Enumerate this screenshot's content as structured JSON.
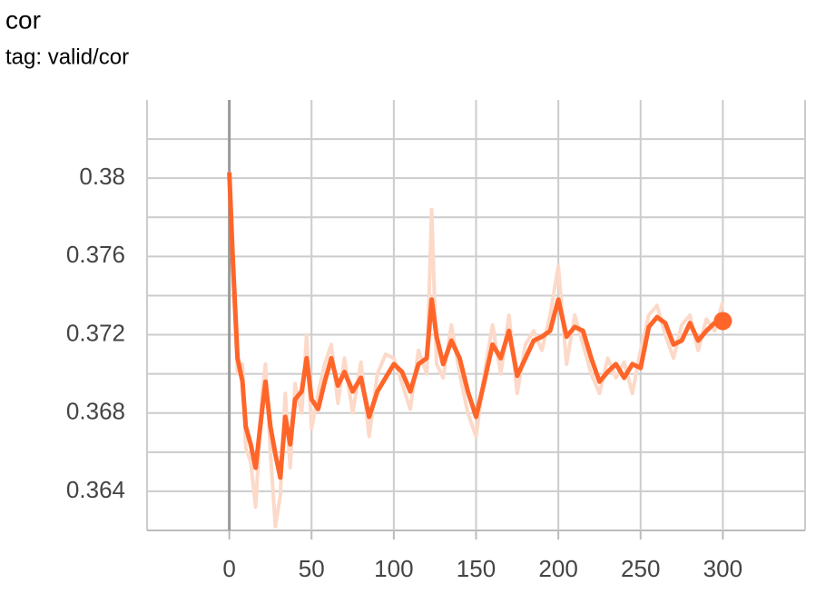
{
  "chart_data": {
    "type": "line",
    "title": "cor",
    "subtitle": "tag: valid/cor",
    "x": [
      0,
      2,
      5,
      8,
      10,
      13,
      16,
      20,
      22,
      25,
      28,
      31,
      34,
      37,
      40,
      44,
      47,
      50,
      54,
      58,
      62,
      66,
      70,
      75,
      80,
      85,
      90,
      95,
      100,
      105,
      110,
      115,
      120,
      123,
      126,
      130,
      135,
      140,
      145,
      150,
      155,
      160,
      165,
      170,
      175,
      180,
      185,
      190,
      195,
      200,
      205,
      210,
      215,
      220,
      225,
      230,
      235,
      240,
      245,
      250,
      255,
      260,
      265,
      270,
      275,
      280,
      285,
      290,
      295,
      300
    ],
    "series": [
      {
        "color": "#fcd9c8",
        "values": [
          0.3803,
          0.3755,
          0.37,
          0.3705,
          0.3662,
          0.3655,
          0.3632,
          0.369,
          0.3705,
          0.366,
          0.3622,
          0.3638,
          0.369,
          0.3652,
          0.3695,
          0.368,
          0.372,
          0.3672,
          0.369,
          0.3705,
          0.3715,
          0.3685,
          0.3708,
          0.368,
          0.3706,
          0.3668,
          0.37,
          0.371,
          0.3708,
          0.3695,
          0.3682,
          0.3712,
          0.37,
          0.3784,
          0.3705,
          0.3698,
          0.3725,
          0.37,
          0.368,
          0.3668,
          0.37,
          0.3725,
          0.37,
          0.373,
          0.369,
          0.3715,
          0.3722,
          0.3712,
          0.373,
          0.3755,
          0.3705,
          0.373,
          0.3715,
          0.37,
          0.369,
          0.3708,
          0.3698,
          0.3706,
          0.369,
          0.3712,
          0.373,
          0.3735,
          0.372,
          0.3708,
          0.3725,
          0.373,
          0.3712,
          0.3728,
          0.3722,
          0.3737
        ]
      },
      {
        "color": "#ff6529",
        "values": [
          0.3803,
          0.3761,
          0.3708,
          0.3696,
          0.3673,
          0.3664,
          0.3652,
          0.3682,
          0.3696,
          0.3673,
          0.3659,
          0.3647,
          0.3678,
          0.3664,
          0.3687,
          0.3691,
          0.3708,
          0.3687,
          0.3682,
          0.3696,
          0.3708,
          0.3694,
          0.3701,
          0.3691,
          0.3698,
          0.3678,
          0.3691,
          0.3698,
          0.3705,
          0.3701,
          0.3691,
          0.3705,
          0.3708,
          0.3738,
          0.3719,
          0.3705,
          0.3717,
          0.3708,
          0.3691,
          0.3678,
          0.3696,
          0.3715,
          0.3708,
          0.3722,
          0.3699,
          0.3708,
          0.3717,
          0.3719,
          0.3722,
          0.3738,
          0.3719,
          0.3724,
          0.3722,
          0.3708,
          0.3696,
          0.3701,
          0.3705,
          0.3698,
          0.3705,
          0.3703,
          0.3724,
          0.3729,
          0.3726,
          0.3715,
          0.3717,
          0.3726,
          0.3717,
          0.3722,
          0.3726,
          0.3727
        ]
      }
    ],
    "xlim": [
      -50,
      350
    ],
    "xticks": [
      0,
      50,
      100,
      150,
      200,
      250,
      300
    ],
    "ylim": [
      0.362,
      0.384
    ],
    "yticks": [
      0.364,
      0.368,
      0.372,
      0.376,
      0.38
    ],
    "grid": true
  }
}
